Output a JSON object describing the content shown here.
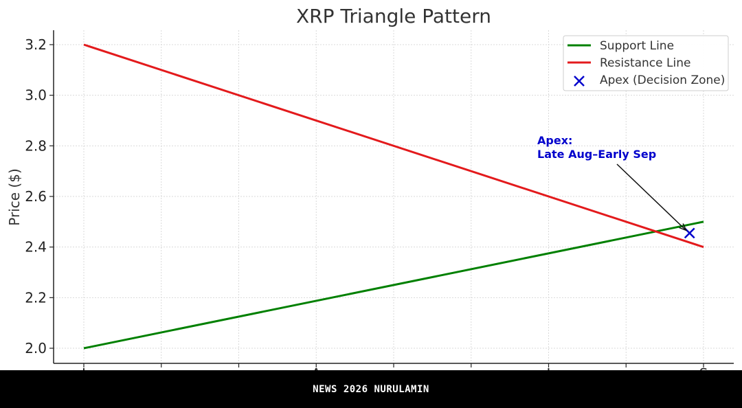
{
  "chart_data": {
    "type": "line",
    "title": "XRP Triangle Pattern",
    "xlabel": "",
    "ylabel": "Price ($)",
    "ylim": [
      1.94,
      3.26
    ],
    "y_ticks": [
      2.0,
      2.2,
      2.4,
      2.6,
      2.8,
      3.0,
      3.2
    ],
    "x_ticks": [
      0,
      1,
      2,
      3,
      4,
      5,
      6,
      7,
      8
    ],
    "x_tick_labels": [
      "J",
      "",
      "",
      "A",
      "",
      "",
      "J",
      "",
      "S"
    ],
    "grid": true,
    "legend_position": "top-right",
    "series": [
      {
        "name": "Support Line",
        "type": "line",
        "color": "#008000",
        "x": [
          0,
          8
        ],
        "y": [
          2.0,
          2.5
        ]
      },
      {
        "name": "Resistance Line",
        "type": "line",
        "color": "#e31a1c",
        "x": [
          0,
          8
        ],
        "y": [
          3.2,
          2.4
        ]
      },
      {
        "name": "Apex (Decision Zone)",
        "type": "scatter",
        "marker": "x",
        "color": "#0000cc",
        "x": [
          7.82
        ],
        "y": [
          2.455
        ]
      }
    ],
    "annotations": [
      {
        "line1": "Apex:",
        "line2": "Late Aug–Early Sep",
        "color": "#0000cc",
        "points_to": [
          7.82,
          2.455
        ]
      }
    ]
  },
  "footer": {
    "text": "NEWS 2026 NURULAMIN"
  }
}
